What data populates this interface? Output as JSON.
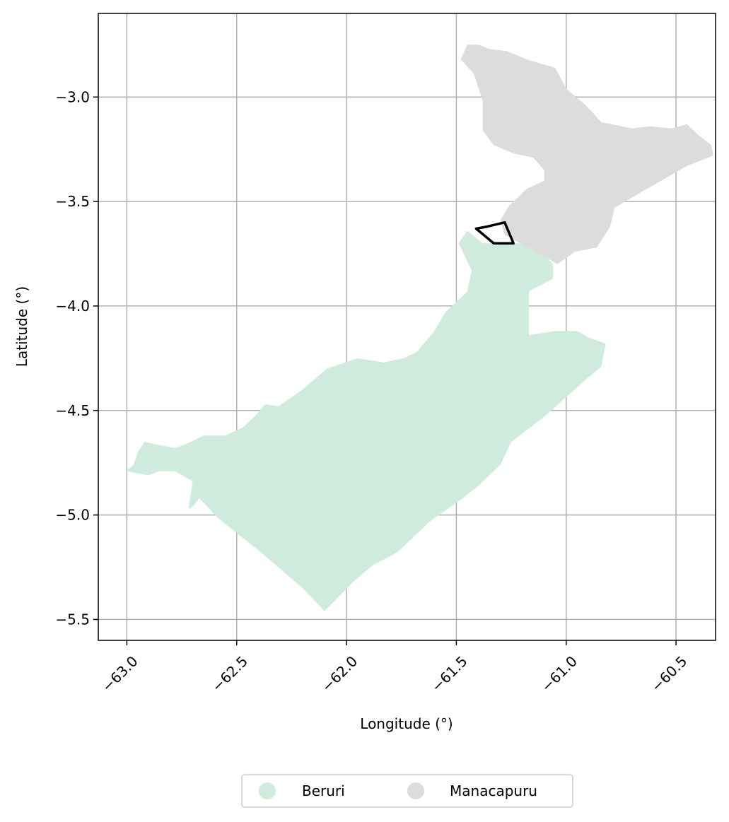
{
  "chart_data": {
    "type": "map",
    "xlabel": "Longitude (°)",
    "ylabel": "Latitude (°)",
    "xlim": [
      -63.13,
      -60.32
    ],
    "ylim": [
      -5.6,
      -2.6
    ],
    "xticks": [
      -63.0,
      -62.5,
      -62.0,
      -61.5,
      -61.0,
      -60.5
    ],
    "xtick_labels": [
      "−63.0",
      "−62.5",
      "−62.0",
      "−61.5",
      "−61.0",
      "−60.5"
    ],
    "yticks": [
      -3.0,
      -3.5,
      -4.0,
      -4.5,
      -5.0,
      -5.5
    ],
    "ytick_labels": [
      "−3.0",
      "−3.5",
      "−4.0",
      "−4.5",
      "−5.0",
      "−5.5"
    ],
    "grid": true,
    "legend_position": "bottom-center",
    "regions": [
      {
        "name": "Beruri",
        "color": "#cfebdd",
        "polygon": [
          [
            -63.0,
            -4.79
          ],
          [
            -62.97,
            -4.76
          ],
          [
            -62.95,
            -4.7
          ],
          [
            -62.92,
            -4.65
          ],
          [
            -62.88,
            -4.66
          ],
          [
            -62.78,
            -4.68
          ],
          [
            -62.73,
            -4.66
          ],
          [
            -62.65,
            -4.62
          ],
          [
            -62.55,
            -4.62
          ],
          [
            -62.47,
            -4.58
          ],
          [
            -62.42,
            -4.53
          ],
          [
            -62.37,
            -4.47
          ],
          [
            -62.31,
            -4.48
          ],
          [
            -62.2,
            -4.4
          ],
          [
            -62.09,
            -4.3
          ],
          [
            -61.95,
            -4.25
          ],
          [
            -61.83,
            -4.27
          ],
          [
            -61.74,
            -4.25
          ],
          [
            -61.68,
            -4.22
          ],
          [
            -61.6,
            -4.12
          ],
          [
            -61.55,
            -4.03
          ],
          [
            -61.45,
            -3.93
          ],
          [
            -61.43,
            -3.83
          ],
          [
            -61.49,
            -3.7
          ],
          [
            -61.45,
            -3.64
          ],
          [
            -61.38,
            -3.7
          ],
          [
            -61.15,
            -3.7
          ],
          [
            -61.06,
            -3.8
          ],
          [
            -61.06,
            -3.87
          ],
          [
            -61.17,
            -3.93
          ],
          [
            -61.17,
            -4.14
          ],
          [
            -61.05,
            -4.12
          ],
          [
            -60.95,
            -4.12
          ],
          [
            -60.9,
            -4.15
          ],
          [
            -60.82,
            -4.18
          ],
          [
            -60.84,
            -4.29
          ],
          [
            -60.93,
            -4.37
          ],
          [
            -61.1,
            -4.53
          ],
          [
            -61.25,
            -4.65
          ],
          [
            -61.3,
            -4.76
          ],
          [
            -61.4,
            -4.86
          ],
          [
            -61.47,
            -4.92
          ],
          [
            -61.62,
            -5.03
          ],
          [
            -61.77,
            -5.18
          ],
          [
            -61.88,
            -5.24
          ],
          [
            -61.97,
            -5.32
          ],
          [
            -62.1,
            -5.46
          ],
          [
            -62.2,
            -5.35
          ],
          [
            -62.4,
            -5.17
          ],
          [
            -62.58,
            -5.02
          ],
          [
            -62.67,
            -4.92
          ],
          [
            -62.7,
            -4.96
          ],
          [
            -62.72,
            -4.97
          ],
          [
            -62.7,
            -4.84
          ],
          [
            -62.78,
            -4.79
          ],
          [
            -62.85,
            -4.79
          ],
          [
            -62.9,
            -4.81
          ],
          [
            -62.96,
            -4.8
          ]
        ]
      },
      {
        "name": "Manacapuru",
        "color": "#dcdcdc",
        "polygon": [
          [
            -61.35,
            -2.77
          ],
          [
            -61.27,
            -2.78
          ],
          [
            -61.18,
            -2.82
          ],
          [
            -61.05,
            -2.86
          ],
          [
            -61.0,
            -2.96
          ],
          [
            -60.91,
            -3.04
          ],
          [
            -60.84,
            -3.12
          ],
          [
            -60.7,
            -3.15
          ],
          [
            -60.62,
            -3.14
          ],
          [
            -60.52,
            -3.15
          ],
          [
            -60.45,
            -3.13
          ],
          [
            -60.4,
            -3.18
          ],
          [
            -60.34,
            -3.23
          ],
          [
            -60.33,
            -3.28
          ],
          [
            -60.45,
            -3.33
          ],
          [
            -60.65,
            -3.45
          ],
          [
            -60.78,
            -3.53
          ],
          [
            -60.8,
            -3.62
          ],
          [
            -60.86,
            -3.72
          ],
          [
            -60.96,
            -3.74
          ],
          [
            -61.04,
            -3.8
          ],
          [
            -61.14,
            -3.74
          ],
          [
            -61.28,
            -3.66
          ],
          [
            -61.3,
            -3.59
          ],
          [
            -61.26,
            -3.52
          ],
          [
            -61.18,
            -3.44
          ],
          [
            -61.1,
            -3.4
          ],
          [
            -61.1,
            -3.35
          ],
          [
            -61.15,
            -3.29
          ],
          [
            -61.24,
            -3.27
          ],
          [
            -61.33,
            -3.23
          ],
          [
            -61.38,
            -3.16
          ],
          [
            -61.38,
            -3.02
          ],
          [
            -61.42,
            -2.89
          ],
          [
            -61.48,
            -2.82
          ],
          [
            -61.45,
            -2.75
          ],
          [
            -61.4,
            -2.75
          ]
        ]
      }
    ],
    "outline": {
      "color": "#000000",
      "polygon": [
        [
          -61.41,
          -3.63
        ],
        [
          -61.33,
          -3.7
        ],
        [
          -61.24,
          -3.7
        ],
        [
          -61.28,
          -3.6
        ],
        [
          -61.36,
          -3.62
        ]
      ]
    }
  },
  "legend": {
    "items": [
      {
        "label": "Beruri",
        "color": "#cfebdd"
      },
      {
        "label": "Manacapuru",
        "color": "#dcdcdc"
      }
    ]
  }
}
